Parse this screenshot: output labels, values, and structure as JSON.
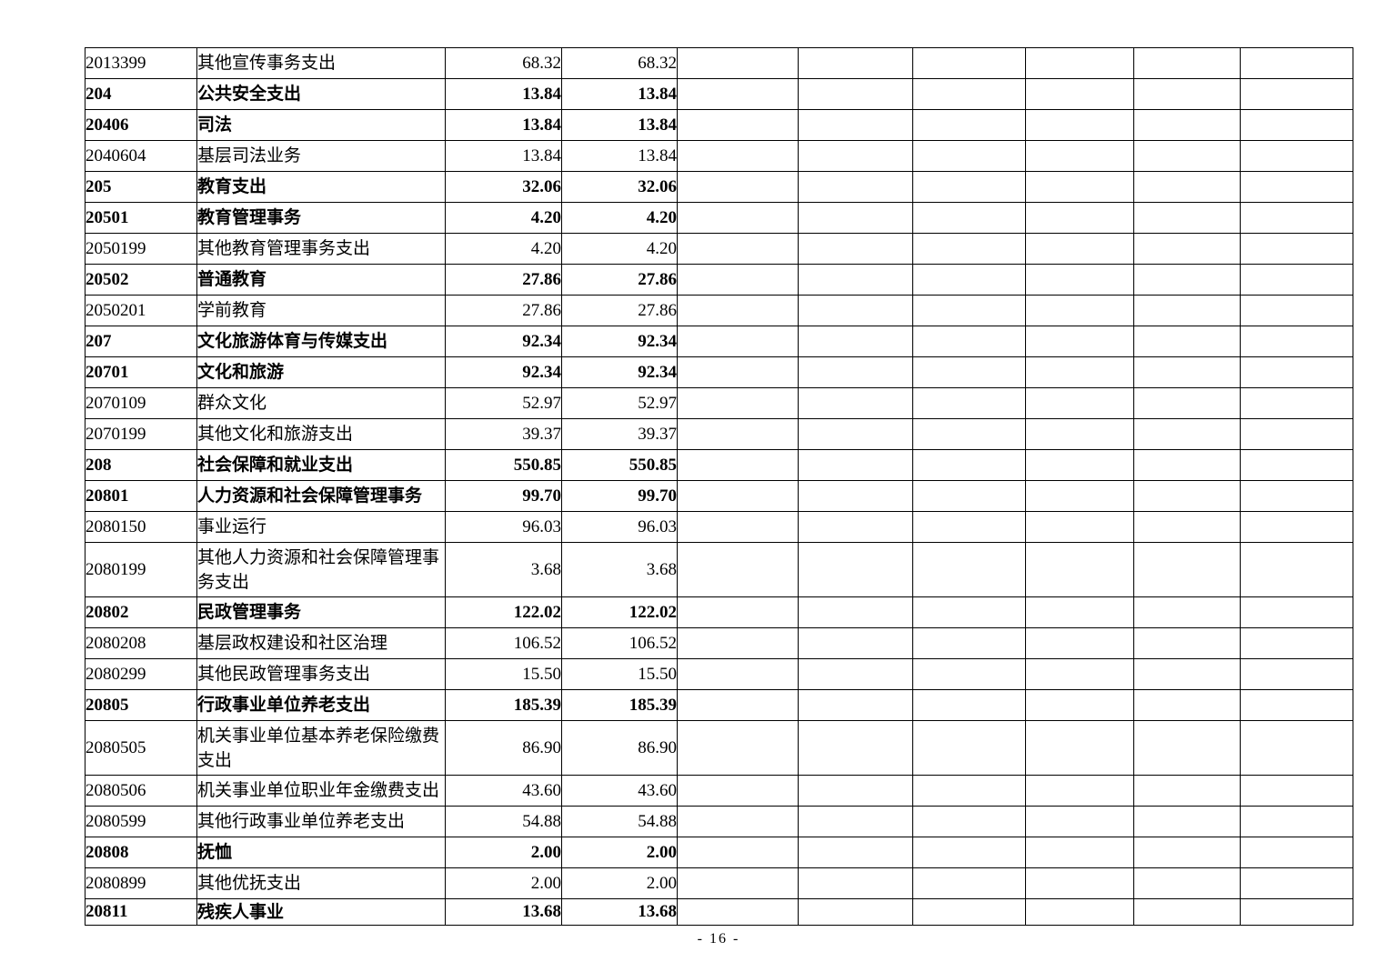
{
  "page": {
    "footer": "- 16 -",
    "background_color": "#ffffff",
    "text_color": "#000000",
    "border_color": "#000000"
  },
  "table": {
    "empty_column_count": 6,
    "rows": [
      {
        "code": "2013399",
        "name": "其他宣传事务支出",
        "v1": "68.32",
        "v2": "68.32",
        "bold": false,
        "tall": false
      },
      {
        "code": "204",
        "name": "公共安全支出",
        "v1": "13.84",
        "v2": "13.84",
        "bold": true,
        "tall": false
      },
      {
        "code": "20406",
        "name": "司法",
        "v1": "13.84",
        "v2": "13.84",
        "bold": true,
        "tall": false
      },
      {
        "code": "2040604",
        "name": "基层司法业务",
        "v1": "13.84",
        "v2": "13.84",
        "bold": false,
        "tall": false
      },
      {
        "code": "205",
        "name": "教育支出",
        "v1": "32.06",
        "v2": "32.06",
        "bold": true,
        "tall": false
      },
      {
        "code": "20501",
        "name": "教育管理事务",
        "v1": "4.20",
        "v2": "4.20",
        "bold": true,
        "tall": false
      },
      {
        "code": "2050199",
        "name": "其他教育管理事务支出",
        "v1": "4.20",
        "v2": "4.20",
        "bold": false,
        "tall": false
      },
      {
        "code": "20502",
        "name": "普通教育",
        "v1": "27.86",
        "v2": "27.86",
        "bold": true,
        "tall": false
      },
      {
        "code": "2050201",
        "name": "学前教育",
        "v1": "27.86",
        "v2": "27.86",
        "bold": false,
        "tall": false
      },
      {
        "code": "207",
        "name": "文化旅游体育与传媒支出",
        "v1": "92.34",
        "v2": "92.34",
        "bold": true,
        "tall": false
      },
      {
        "code": "20701",
        "name": "文化和旅游",
        "v1": "92.34",
        "v2": "92.34",
        "bold": true,
        "tall": false
      },
      {
        "code": "2070109",
        "name": "群众文化",
        "v1": "52.97",
        "v2": "52.97",
        "bold": false,
        "tall": false
      },
      {
        "code": "2070199",
        "name": "其他文化和旅游支出",
        "v1": "39.37",
        "v2": "39.37",
        "bold": false,
        "tall": false
      },
      {
        "code": "208",
        "name": "社会保障和就业支出",
        "v1": "550.85",
        "v2": "550.85",
        "bold": true,
        "tall": false
      },
      {
        "code": "20801",
        "name": "人力资源和社会保障管理事务",
        "v1": "99.70",
        "v2": "99.70",
        "bold": true,
        "tall": false
      },
      {
        "code": "2080150",
        "name": "事业运行",
        "v1": "96.03",
        "v2": "96.03",
        "bold": false,
        "tall": false
      },
      {
        "code": "2080199",
        "name": "其他人力资源和社会保障管理事务支出",
        "v1": "3.68",
        "v2": "3.68",
        "bold": false,
        "tall": true
      },
      {
        "code": "20802",
        "name": "民政管理事务",
        "v1": "122.02",
        "v2": "122.02",
        "bold": true,
        "tall": false
      },
      {
        "code": "2080208",
        "name": "基层政权建设和社区治理",
        "v1": "106.52",
        "v2": "106.52",
        "bold": false,
        "tall": false
      },
      {
        "code": "2080299",
        "name": "其他民政管理事务支出",
        "v1": "15.50",
        "v2": "15.50",
        "bold": false,
        "tall": false
      },
      {
        "code": "20805",
        "name": "行政事业单位养老支出",
        "v1": "185.39",
        "v2": "185.39",
        "bold": true,
        "tall": false
      },
      {
        "code": "2080505",
        "name": "机关事业单位基本养老保险缴费支出",
        "v1": "86.90",
        "v2": "86.90",
        "bold": false,
        "tall": true
      },
      {
        "code": "2080506",
        "name": "机关事业单位职业年金缴费支出",
        "v1": "43.60",
        "v2": "43.60",
        "bold": false,
        "tall": false
      },
      {
        "code": "2080599",
        "name": "其他行政事业单位养老支出",
        "v1": "54.88",
        "v2": "54.88",
        "bold": false,
        "tall": false
      },
      {
        "code": "20808",
        "name": "抚恤",
        "v1": "2.00",
        "v2": "2.00",
        "bold": true,
        "tall": false
      },
      {
        "code": "2080899",
        "name": "其他优抚支出",
        "v1": "2.00",
        "v2": "2.00",
        "bold": false,
        "tall": false
      },
      {
        "code": "20811",
        "name": "残疾人事业",
        "v1": "13.68",
        "v2": "13.68",
        "bold": true,
        "tall": false
      }
    ]
  }
}
